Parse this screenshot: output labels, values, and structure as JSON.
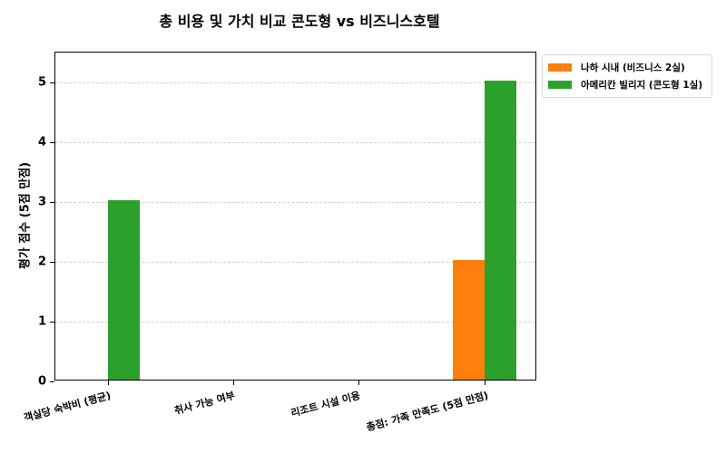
{
  "chart_data": {
    "type": "bar",
    "title": "총 비용 및 가치 비교 콘도형 vs 비즈니스호텔",
    "xlabel": "",
    "ylabel": "평가 점수 (5점 만점)",
    "ylim": [
      0,
      5.5
    ],
    "yticks": [
      0,
      1,
      2,
      3,
      4,
      5
    ],
    "grid": true,
    "legend_position": "outside upper right",
    "categories": [
      "객실당 숙박비 (평균)",
      "취사 가능 여부",
      "리조트 시설 이용",
      "총점: 가족 만족도  (5점 만점)"
    ],
    "series": [
      {
        "name": "나하 시내 (비즈니스 2실)",
        "color": "#ff7f0e",
        "values": [
          0,
          0,
          0,
          2
        ]
      },
      {
        "name": "아메리칸 빌리지 (콘도형 1실)",
        "color": "#2ca02c",
        "values": [
          3,
          0,
          0,
          5
        ]
      }
    ]
  }
}
